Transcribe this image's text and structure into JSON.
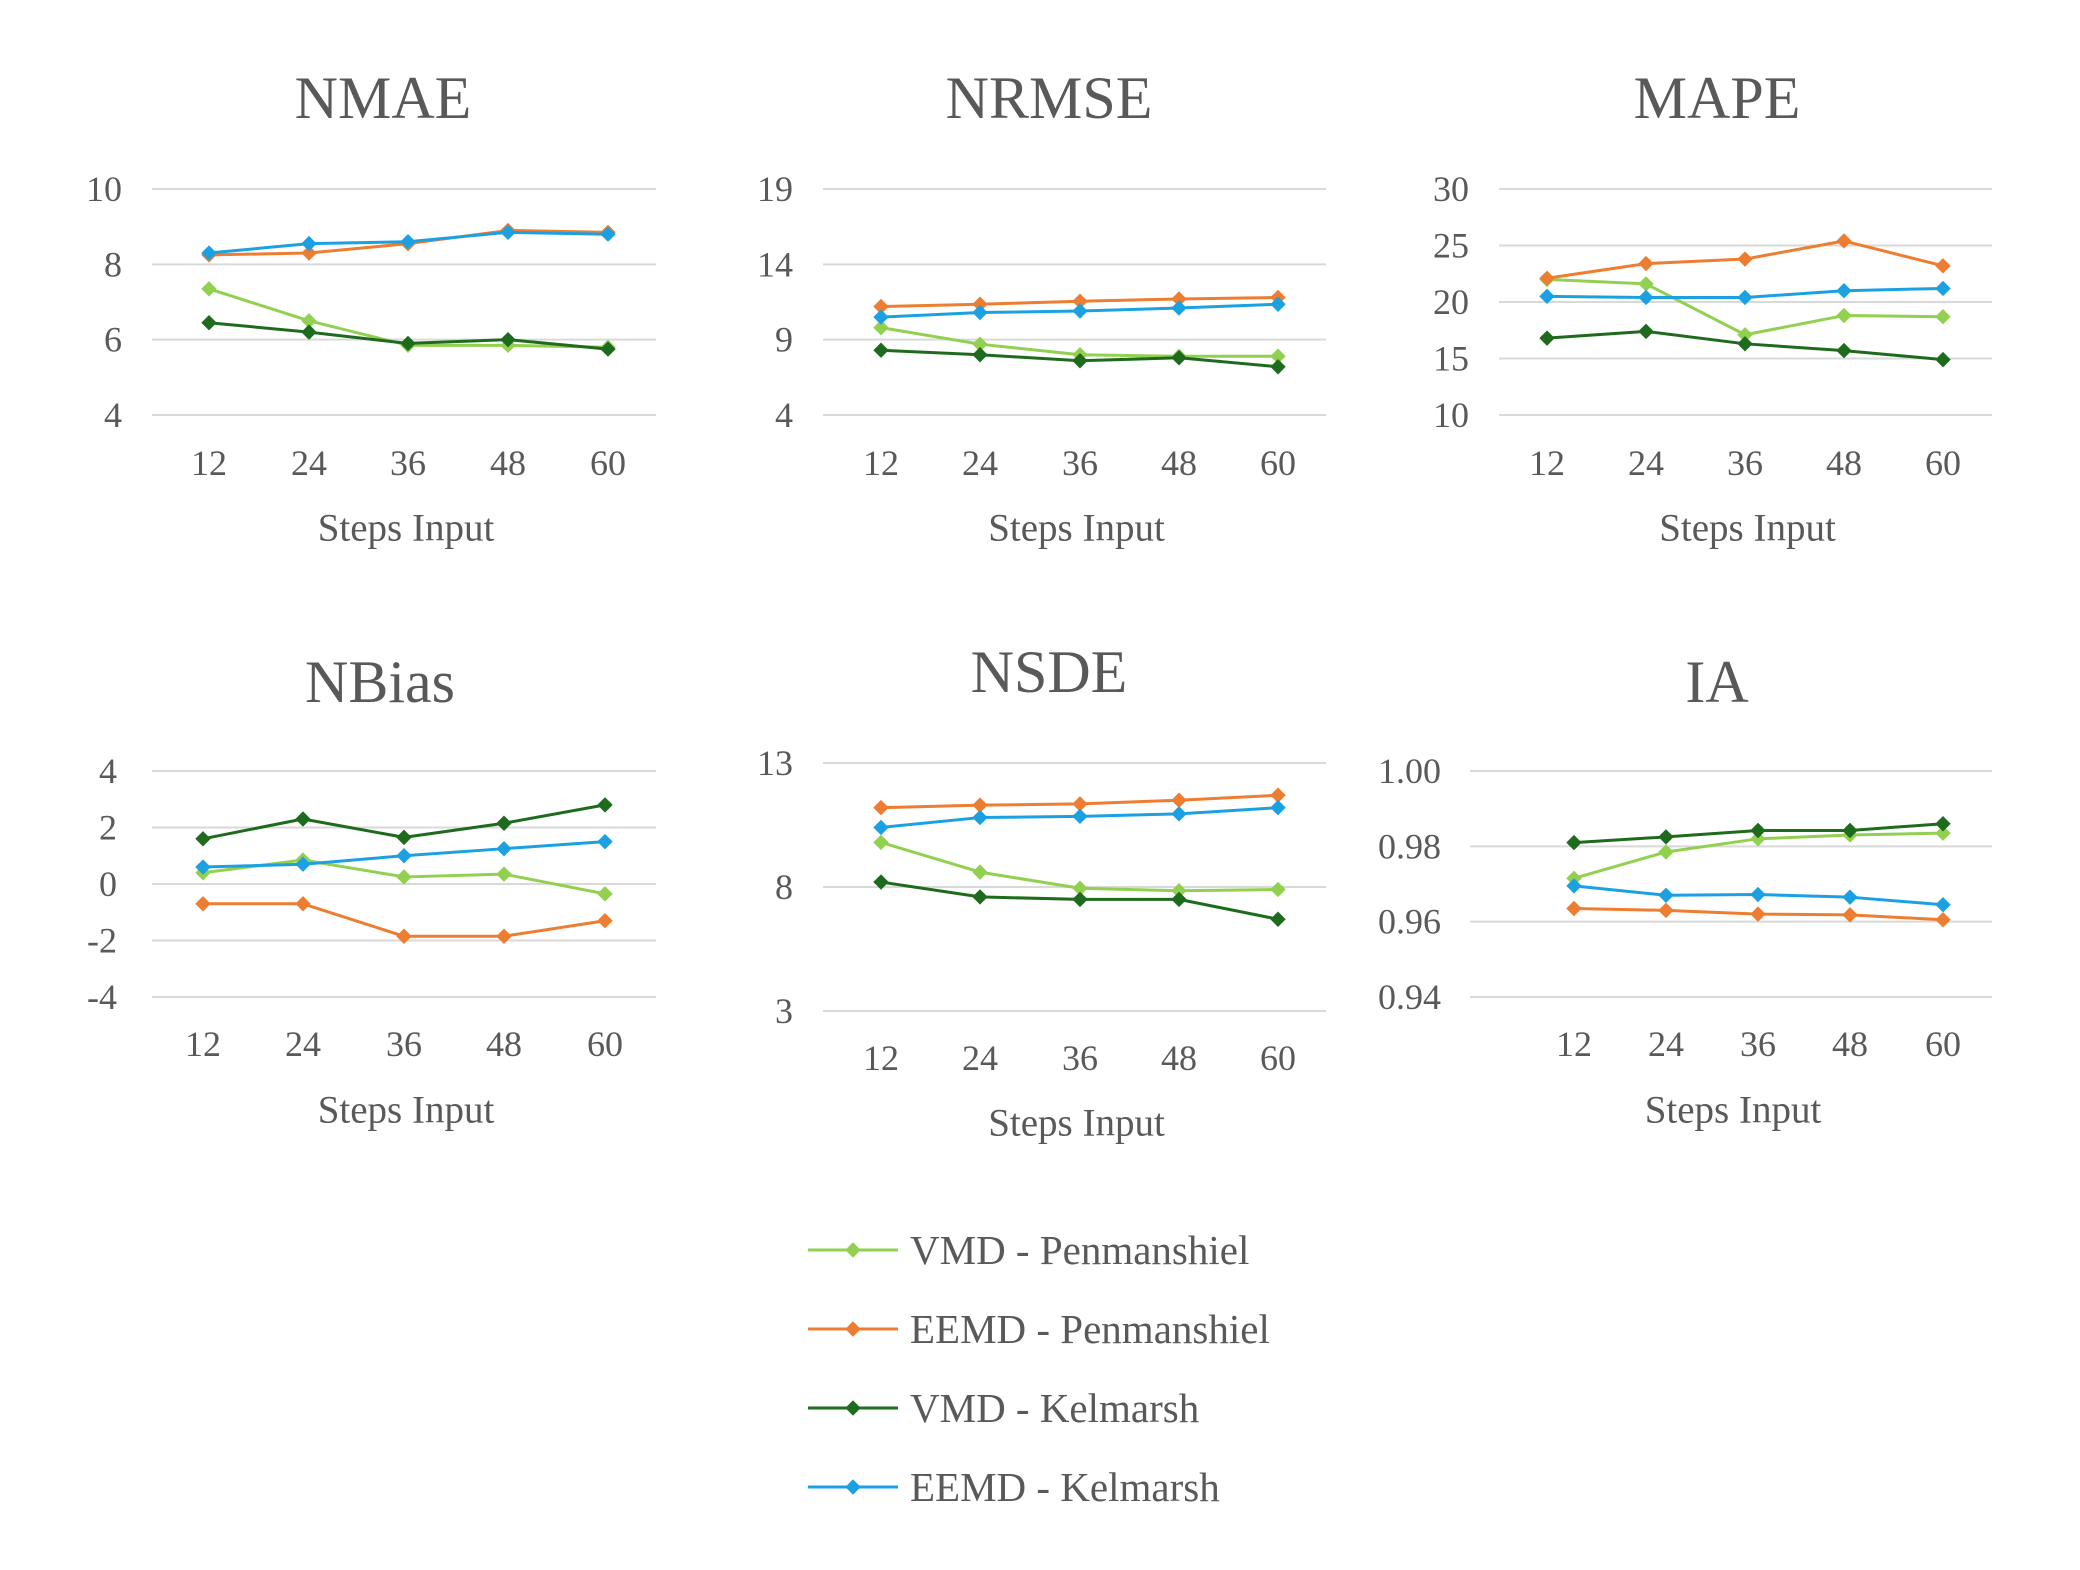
{
  "series_style": [
    {
      "name": "VMD - Penmanshiel",
      "color": "#92d050"
    },
    {
      "name": "EEMD - Penmanshiel",
      "color": "#ed7d31"
    },
    {
      "name": "VMD - Kelmarsh",
      "color": "#1e6b1e"
    },
    {
      "name": "EEMD - Kelmarsh",
      "color": "#1ba1e2"
    }
  ],
  "marker": "diamond",
  "legend_position": "bottom-center",
  "chart_data": [
    {
      "type": "line",
      "title": "NMAE",
      "xlabel": "Steps Input",
      "ylabel": "",
      "categories": [
        "12",
        "24",
        "36",
        "48",
        "60"
      ],
      "ylim": [
        4,
        10
      ],
      "yticks": [
        "4",
        "6",
        "8",
        "10"
      ],
      "grid": true,
      "series": [
        {
          "name": "VMD - Penmanshiel",
          "values": [
            7.35,
            6.5,
            5.85,
            5.85,
            5.8
          ]
        },
        {
          "name": "EEMD - Penmanshiel",
          "values": [
            8.25,
            8.3,
            8.55,
            8.9,
            8.85
          ]
        },
        {
          "name": "VMD - Kelmarsh",
          "values": [
            6.45,
            6.2,
            5.9,
            6.0,
            5.75
          ]
        },
        {
          "name": "EEMD - Kelmarsh",
          "values": [
            8.3,
            8.55,
            8.6,
            8.85,
            8.8
          ]
        }
      ]
    },
    {
      "type": "line",
      "title": "NRMSE",
      "xlabel": "Steps Input",
      "ylabel": "",
      "categories": [
        "12",
        "24",
        "36",
        "48",
        "60"
      ],
      "ylim": [
        4,
        19
      ],
      "yticks": [
        "4",
        "9",
        "14",
        "19"
      ],
      "grid": true,
      "series": [
        {
          "name": "VMD - Penmanshiel",
          "values": [
            9.8,
            8.7,
            8.0,
            7.9,
            7.9
          ]
        },
        {
          "name": "EEMD - Penmanshiel",
          "values": [
            11.2,
            11.35,
            11.55,
            11.7,
            11.8
          ]
        },
        {
          "name": "VMD - Kelmarsh",
          "values": [
            8.3,
            8.0,
            7.6,
            7.8,
            7.2
          ]
        },
        {
          "name": "EEMD - Kelmarsh",
          "values": [
            10.5,
            10.8,
            10.9,
            11.1,
            11.35
          ]
        }
      ]
    },
    {
      "type": "line",
      "title": "MAPE",
      "xlabel": "Steps Input",
      "ylabel": "",
      "categories": [
        "12",
        "24",
        "36",
        "48",
        "60"
      ],
      "ylim": [
        10,
        30
      ],
      "yticks": [
        "10",
        "15",
        "20",
        "25",
        "30"
      ],
      "grid": true,
      "series": [
        {
          "name": "VMD - Penmanshiel",
          "values": [
            22.0,
            21.6,
            17.1,
            18.8,
            18.7
          ]
        },
        {
          "name": "EEMD - Penmanshiel",
          "values": [
            22.1,
            23.4,
            23.8,
            25.4,
            23.2
          ]
        },
        {
          "name": "VMD - Kelmarsh",
          "values": [
            16.8,
            17.4,
            16.3,
            15.7,
            14.9
          ]
        },
        {
          "name": "EEMD - Kelmarsh",
          "values": [
            20.5,
            20.4,
            20.4,
            21.0,
            21.2
          ]
        }
      ]
    },
    {
      "type": "line",
      "title": "NBias",
      "xlabel": "Steps Input",
      "ylabel": "",
      "categories": [
        "12",
        "24",
        "36",
        "48",
        "60"
      ],
      "ylim": [
        -4,
        4
      ],
      "yticks": [
        "-4",
        "-2",
        "0",
        "2",
        "4"
      ],
      "grid": true,
      "series": [
        {
          "name": "VMD - Penmanshiel",
          "values": [
            0.4,
            0.85,
            0.25,
            0.35,
            -0.35
          ]
        },
        {
          "name": "EEMD - Penmanshiel",
          "values": [
            -0.7,
            -0.7,
            -1.85,
            -1.85,
            -1.3
          ]
        },
        {
          "name": "VMD - Kelmarsh",
          "values": [
            1.6,
            2.3,
            1.65,
            2.15,
            2.8
          ]
        },
        {
          "name": "EEMD - Kelmarsh",
          "values": [
            0.6,
            0.7,
            1.0,
            1.25,
            1.5
          ]
        }
      ]
    },
    {
      "type": "line",
      "title": "NSDE",
      "xlabel": "Steps Input",
      "ylabel": "",
      "categories": [
        "12",
        "24",
        "36",
        "48",
        "60"
      ],
      "ylim": [
        3,
        13
      ],
      "yticks": [
        "3",
        "8",
        "13"
      ],
      "grid": true,
      "series": [
        {
          "name": "VMD - Penmanshiel",
          "values": [
            9.8,
            8.6,
            7.95,
            7.85,
            7.9
          ]
        },
        {
          "name": "EEMD - Penmanshiel",
          "values": [
            11.2,
            11.3,
            11.35,
            11.5,
            11.7
          ]
        },
        {
          "name": "VMD - Kelmarsh",
          "values": [
            8.2,
            7.6,
            7.5,
            7.5,
            6.7
          ]
        },
        {
          "name": "EEMD - Kelmarsh",
          "values": [
            10.4,
            10.8,
            10.85,
            10.95,
            11.2
          ]
        }
      ]
    },
    {
      "type": "line",
      "title": "IA",
      "xlabel": "Steps Input",
      "ylabel": "",
      "categories": [
        "12",
        "24",
        "36",
        "48",
        "60"
      ],
      "ylim": [
        0.94,
        1.0
      ],
      "yticks": [
        "0.94",
        "0.96",
        "0.98",
        "1.00"
      ],
      "grid": true,
      "series": [
        {
          "name": "VMD - Penmanshiel",
          "values": [
            0.9715,
            0.9785,
            0.982,
            0.983,
            0.9835
          ]
        },
        {
          "name": "EEMD - Penmanshiel",
          "values": [
            0.9635,
            0.963,
            0.962,
            0.9618,
            0.9605
          ]
        },
        {
          "name": "VMD - Kelmarsh",
          "values": [
            0.981,
            0.9825,
            0.9842,
            0.9842,
            0.986
          ]
        },
        {
          "name": "EEMD - Kelmarsh",
          "values": [
            0.9695,
            0.967,
            0.9672,
            0.9665,
            0.9645
          ]
        }
      ]
    }
  ]
}
